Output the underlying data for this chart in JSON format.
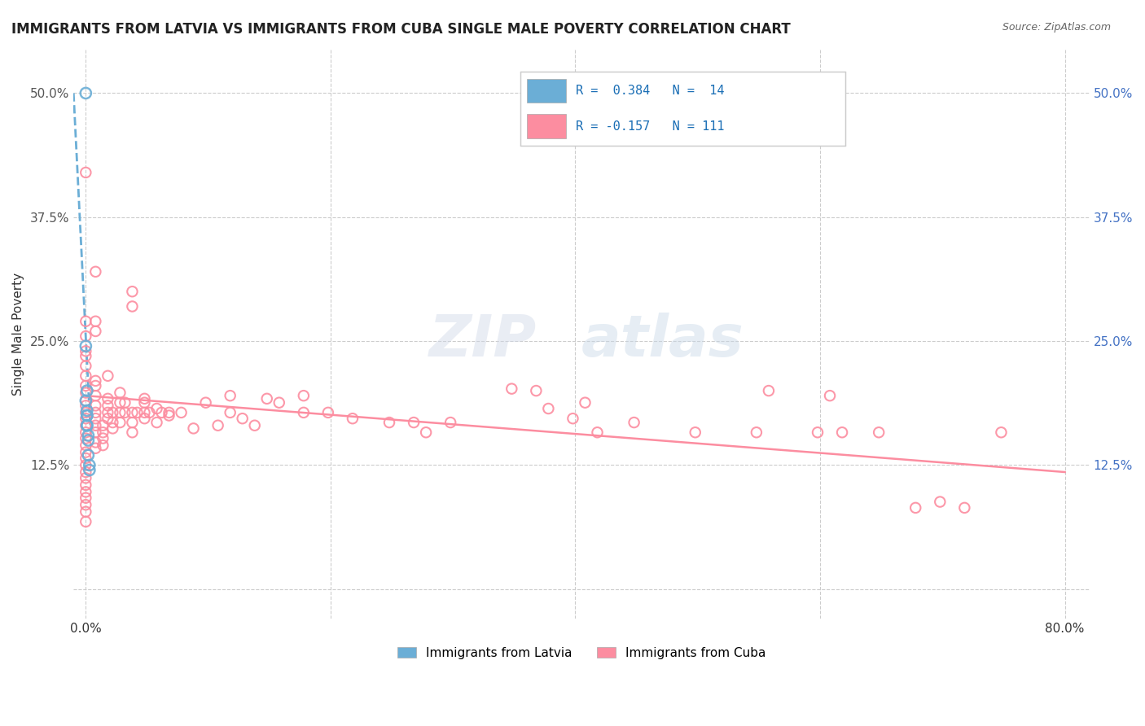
{
  "title": "IMMIGRANTS FROM LATVIA VS IMMIGRANTS FROM CUBA SINGLE MALE POVERTY CORRELATION CHART",
  "source": "Source: ZipAtlas.com",
  "ylabel": "Single Male Poverty",
  "xlim": [
    -0.01,
    0.82
  ],
  "ylim": [
    -0.03,
    0.545
  ],
  "yticks": [
    0.0,
    0.125,
    0.25,
    0.375,
    0.5
  ],
  "xticks": [
    0.0,
    0.2,
    0.4,
    0.6,
    0.8
  ],
  "ytick_labels_left": [
    "",
    "12.5%",
    "25.0%",
    "37.5%",
    "50.0%"
  ],
  "ytick_labels_right": [
    "",
    "12.5%",
    "25.0%",
    "37.5%",
    "50.0%"
  ],
  "xtick_labels": [
    "0.0%",
    "",
    "",
    "",
    "80.0%"
  ],
  "grid_color": "#cccccc",
  "legend_R1": "R =  0.384",
  "legend_N1": "N =  14",
  "legend_R2": "R = -0.157",
  "legend_N2": "N = 111",
  "color_latvia": "#6baed6",
  "color_cuba": "#fc8da0",
  "color_right_axis": "#4472c4",
  "latvia_points": [
    [
      0.0,
      0.5
    ],
    [
      0.0,
      0.245
    ],
    [
      0.0,
      0.19
    ],
    [
      0.001,
      0.175
    ],
    [
      0.001,
      0.165
    ],
    [
      0.001,
      0.2
    ],
    [
      0.001,
      0.18
    ],
    [
      0.001,
      0.175
    ],
    [
      0.001,
      0.165
    ],
    [
      0.002,
      0.155
    ],
    [
      0.002,
      0.15
    ],
    [
      0.002,
      0.135
    ],
    [
      0.003,
      0.125
    ],
    [
      0.003,
      0.12
    ]
  ],
  "cuba_points": [
    [
      0.0,
      0.42
    ],
    [
      0.008,
      0.32
    ],
    [
      0.008,
      0.27
    ],
    [
      0.0,
      0.27
    ],
    [
      0.0,
      0.255
    ],
    [
      0.0,
      0.24
    ],
    [
      0.0,
      0.235
    ],
    [
      0.0,
      0.225
    ],
    [
      0.0,
      0.215
    ],
    [
      0.0,
      0.205
    ],
    [
      0.0,
      0.198
    ],
    [
      0.0,
      0.19
    ],
    [
      0.0,
      0.185
    ],
    [
      0.0,
      0.178
    ],
    [
      0.0,
      0.172
    ],
    [
      0.0,
      0.165
    ],
    [
      0.0,
      0.158
    ],
    [
      0.0,
      0.152
    ],
    [
      0.0,
      0.145
    ],
    [
      0.0,
      0.138
    ],
    [
      0.0,
      0.132
    ],
    [
      0.0,
      0.125
    ],
    [
      0.0,
      0.118
    ],
    [
      0.0,
      0.112
    ],
    [
      0.0,
      0.105
    ],
    [
      0.0,
      0.098
    ],
    [
      0.0,
      0.092
    ],
    [
      0.0,
      0.085
    ],
    [
      0.0,
      0.078
    ],
    [
      0.0,
      0.068
    ],
    [
      0.008,
      0.26
    ],
    [
      0.008,
      0.21
    ],
    [
      0.008,
      0.205
    ],
    [
      0.008,
      0.195
    ],
    [
      0.008,
      0.185
    ],
    [
      0.008,
      0.178
    ],
    [
      0.008,
      0.172
    ],
    [
      0.008,
      0.165
    ],
    [
      0.008,
      0.158
    ],
    [
      0.008,
      0.148
    ],
    [
      0.008,
      0.142
    ],
    [
      0.014,
      0.165
    ],
    [
      0.014,
      0.158
    ],
    [
      0.014,
      0.152
    ],
    [
      0.014,
      0.145
    ],
    [
      0.018,
      0.215
    ],
    [
      0.018,
      0.192
    ],
    [
      0.018,
      0.185
    ],
    [
      0.018,
      0.178
    ],
    [
      0.018,
      0.172
    ],
    [
      0.022,
      0.178
    ],
    [
      0.022,
      0.168
    ],
    [
      0.022,
      0.162
    ],
    [
      0.028,
      0.198
    ],
    [
      0.028,
      0.188
    ],
    [
      0.028,
      0.178
    ],
    [
      0.028,
      0.168
    ],
    [
      0.032,
      0.188
    ],
    [
      0.032,
      0.178
    ],
    [
      0.038,
      0.3
    ],
    [
      0.038,
      0.285
    ],
    [
      0.038,
      0.178
    ],
    [
      0.038,
      0.168
    ],
    [
      0.038,
      0.158
    ],
    [
      0.042,
      0.178
    ],
    [
      0.048,
      0.192
    ],
    [
      0.048,
      0.188
    ],
    [
      0.048,
      0.178
    ],
    [
      0.052,
      0.178
    ],
    [
      0.058,
      0.182
    ],
    [
      0.062,
      0.178
    ],
    [
      0.068,
      0.178
    ],
    [
      0.078,
      0.178
    ],
    [
      0.088,
      0.162
    ],
    [
      0.098,
      0.188
    ],
    [
      0.118,
      0.178
    ],
    [
      0.128,
      0.172
    ],
    [
      0.138,
      0.165
    ],
    [
      0.148,
      0.192
    ],
    [
      0.158,
      0.188
    ],
    [
      0.178,
      0.178
    ],
    [
      0.198,
      0.178
    ],
    [
      0.218,
      0.172
    ],
    [
      0.248,
      0.168
    ],
    [
      0.278,
      0.158
    ],
    [
      0.298,
      0.168
    ],
    [
      0.348,
      0.202
    ],
    [
      0.378,
      0.182
    ],
    [
      0.398,
      0.172
    ],
    [
      0.418,
      0.158
    ],
    [
      0.448,
      0.168
    ],
    [
      0.498,
      0.158
    ],
    [
      0.548,
      0.158
    ],
    [
      0.598,
      0.158
    ],
    [
      0.618,
      0.158
    ],
    [
      0.648,
      0.158
    ],
    [
      0.678,
      0.082
    ],
    [
      0.698,
      0.088
    ],
    [
      0.718,
      0.082
    ],
    [
      0.748,
      0.158
    ],
    [
      0.558,
      0.2
    ],
    [
      0.608,
      0.195
    ],
    [
      0.368,
      0.2
    ],
    [
      0.408,
      0.188
    ],
    [
      0.268,
      0.168
    ],
    [
      0.178,
      0.195
    ],
    [
      0.108,
      0.165
    ],
    [
      0.118,
      0.195
    ],
    [
      0.068,
      0.175
    ],
    [
      0.058,
      0.168
    ],
    [
      0.048,
      0.172
    ]
  ],
  "latvia_line_x": [
    -0.01,
    0.004
  ],
  "latvia_line_y": [
    0.5,
    0.155
  ],
  "cuba_line_x": [
    0.0,
    0.8
  ],
  "cuba_line_y": [
    0.195,
    0.118
  ]
}
